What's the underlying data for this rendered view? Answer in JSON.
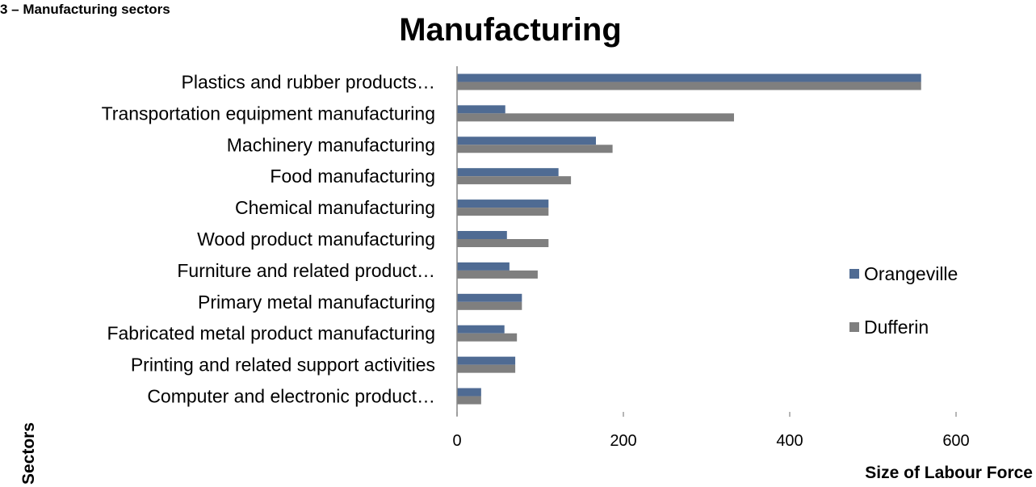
{
  "caption": "3 – Manufacturing sectors",
  "chart_data": {
    "type": "bar",
    "orientation": "horizontal",
    "title": "Manufacturing",
    "xlabel": "Size of Labour Force",
    "ylabel": "Sectors",
    "categories": [
      "Plastics and rubber products…",
      "Transportation equipment manufacturing",
      "Machinery manufacturing",
      "Food manufacturing",
      "Chemical manufacturing",
      "Wood product manufacturing",
      "Furniture and related product…",
      "Primary metal manufacturing",
      "Fabricated metal product manufacturing",
      "Printing and related support activities",
      "Computer and electronic product…"
    ],
    "series": [
      {
        "name": "Orangeville",
        "color": "#4F6B93",
        "values": [
          558,
          58,
          167,
          122,
          110,
          60,
          63,
          78,
          57,
          70,
          29
        ]
      },
      {
        "name": "Dufferin",
        "color": "#7F7F7F",
        "values": [
          558,
          333,
          187,
          137,
          110,
          110,
          97,
          78,
          72,
          70,
          29
        ]
      }
    ],
    "xlim": [
      0,
      600
    ],
    "xticks": [
      0,
      200,
      400,
      600
    ],
    "grid": false,
    "legend_position": "right"
  }
}
